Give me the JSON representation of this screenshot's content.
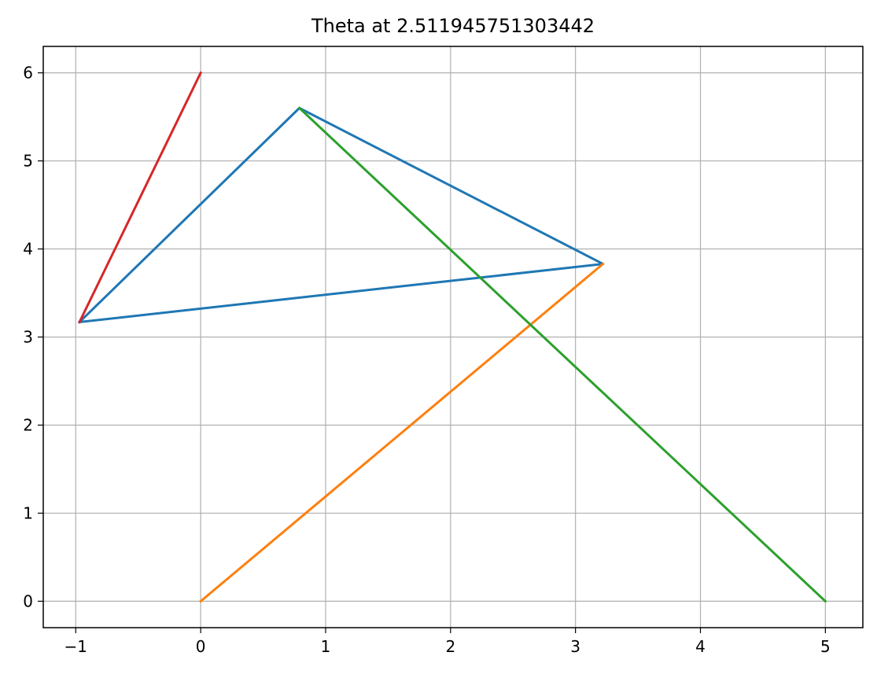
{
  "chart_data": {
    "type": "line",
    "title": "Theta at 2.511945751303442",
    "xlabel": "",
    "ylabel": "",
    "xlim": [
      -1.26,
      5.3
    ],
    "ylim": [
      -0.3,
      6.3
    ],
    "x_ticks": [
      -1,
      0,
      1,
      2,
      3,
      4,
      5
    ],
    "y_ticks": [
      0,
      1,
      2,
      3,
      4,
      5,
      6
    ],
    "x_tick_labels": [
      "−1",
      "0",
      "1",
      "2",
      "3",
      "4",
      "5"
    ],
    "y_tick_labels": [
      "0",
      "1",
      "2",
      "3",
      "4",
      "5",
      "6"
    ],
    "grid": true,
    "legend": "none",
    "series": [
      {
        "color": "#1f77b4",
        "points": [
          [
            -0.97,
            3.17
          ],
          [
            0.79,
            5.6
          ],
          [
            3.22,
            3.83
          ],
          [
            -0.97,
            3.17
          ]
        ]
      },
      {
        "color": "#ff7f0e",
        "points": [
          [
            0,
            0
          ],
          [
            3.22,
            3.83
          ]
        ]
      },
      {
        "color": "#2ca02c",
        "points": [
          [
            5,
            0
          ],
          [
            0.79,
            5.6
          ]
        ]
      },
      {
        "color": "#d62728",
        "points": [
          [
            0,
            6
          ],
          [
            -0.97,
            3.17
          ]
        ]
      }
    ]
  }
}
